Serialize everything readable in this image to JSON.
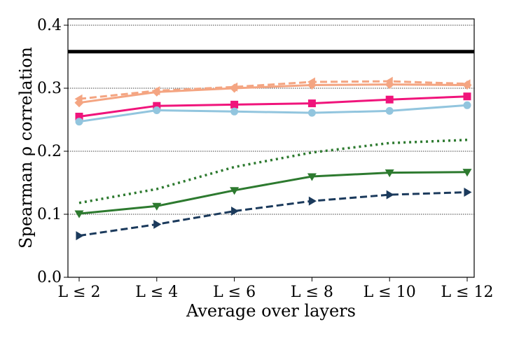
{
  "chart_data": {
    "type": "line",
    "title": "",
    "xlabel": "Average over layers",
    "ylabel": "Spearman ρ correlation",
    "categories": [
      "L ≤ 2",
      "L ≤ 4",
      "L ≤ 6",
      "L ≤ 8",
      "L ≤ 10",
      "L ≤ 12"
    ],
    "ylim": [
      0.0,
      0.41
    ],
    "yticks": [
      {
        "value": 0.0,
        "label": "0.0"
      },
      {
        "value": 0.1,
        "label": "0.1"
      },
      {
        "value": 0.2,
        "label": "0.2"
      },
      {
        "value": 0.3,
        "label": "0.3"
      },
      {
        "value": 0.4,
        "label": "0.4"
      }
    ],
    "grid": "horizontal dotted at ticks",
    "reference_line": {
      "value": 0.358,
      "color": "#000000"
    },
    "series": [
      {
        "name": "orange-solid-diamond",
        "color": "#F4A582",
        "style": "solid",
        "marker": "diamond",
        "values": [
          0.277,
          0.294,
          0.3,
          0.305,
          0.306,
          0.305
        ]
      },
      {
        "name": "orange-dashed-triangle-left",
        "color": "#F4A582",
        "style": "dashed",
        "marker": "triangle-left",
        "values": [
          0.283,
          0.296,
          0.302,
          0.31,
          0.311,
          0.307
        ]
      },
      {
        "name": "pink-square",
        "color": "#F0147B",
        "style": "solid",
        "marker": "square",
        "values": [
          0.255,
          0.272,
          0.274,
          0.276,
          0.282,
          0.287
        ]
      },
      {
        "name": "light-blue-circle",
        "color": "#92C5DE",
        "style": "solid",
        "marker": "circle",
        "values": [
          0.247,
          0.265,
          0.263,
          0.261,
          0.264,
          0.273
        ]
      },
      {
        "name": "green-dotted",
        "color": "#2D7A2F",
        "style": "dotted",
        "marker": "none",
        "values": [
          0.118,
          0.14,
          0.175,
          0.198,
          0.213,
          0.218
        ]
      },
      {
        "name": "green-triangle-down",
        "color": "#2D7A2F",
        "style": "solid",
        "marker": "triangle-down",
        "values": [
          0.101,
          0.113,
          0.138,
          0.16,
          0.166,
          0.167
        ]
      },
      {
        "name": "navy-dashed-triangle-right",
        "color": "#1B3A5C",
        "style": "dashed",
        "marker": "triangle-right",
        "values": [
          0.066,
          0.084,
          0.105,
          0.121,
          0.131,
          0.135
        ]
      }
    ]
  }
}
